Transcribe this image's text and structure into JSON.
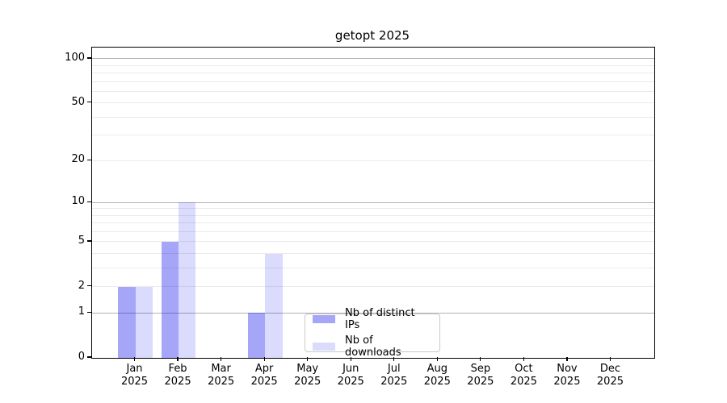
{
  "chart_data": {
    "type": "bar",
    "title": "getopt 2025",
    "categories": [
      "Jan",
      "Feb",
      "Mar",
      "Apr",
      "May",
      "Jun",
      "Jul",
      "Aug",
      "Sep",
      "Oct",
      "Nov",
      "Dec"
    ],
    "year_label": "2025",
    "series": [
      {
        "name": "Nb of distinct IPs",
        "color": "rgba(0,0,238,0.35)",
        "values": [
          2,
          5,
          0,
          1,
          0,
          0,
          0,
          0,
          0,
          0,
          0,
          0
        ]
      },
      {
        "name": "Nb of downloads",
        "color": "rgba(0,0,238,0.14)",
        "values": [
          2,
          10,
          0,
          4,
          0,
          0,
          0,
          0,
          0,
          0,
          0,
          0
        ]
      }
    ],
    "y_axis": {
      "scale": "log1p",
      "tick_values": [
        0,
        1,
        2,
        5,
        10,
        20,
        50,
        100
      ],
      "tick_labels": [
        "0",
        "1",
        "2",
        "5",
        "10",
        "20",
        "50",
        "100"
      ],
      "major_grid_values": [
        1,
        10,
        100
      ],
      "minor_grid_values": [
        2,
        3,
        4,
        5,
        6,
        7,
        8,
        9,
        20,
        30,
        40,
        50,
        60,
        70,
        80,
        90
      ],
      "range": [
        0,
        118
      ]
    },
    "grid": {
      "major_color": "#b2b2b2",
      "minor_color": "#eaeaea"
    },
    "legend": {
      "position": "lower-center"
    },
    "colors": {
      "spine": "#000000",
      "text": "#000000",
      "background": "#ffffff"
    }
  }
}
